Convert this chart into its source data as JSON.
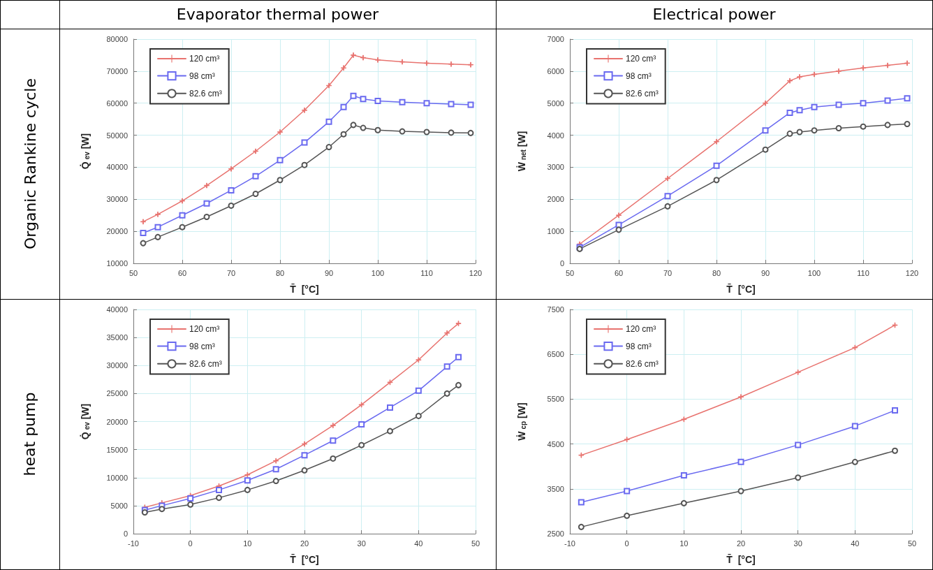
{
  "chart_data": [
    {
      "type": "line",
      "title": "Evaporator thermal power",
      "annotations": [
        "Organic Rankine cycle"
      ],
      "xlabel": "T̄  [°C]",
      "ylabel": "Q̇$_{ev}$ [W]",
      "xlim": [
        50,
        120
      ],
      "xticks": [
        50,
        60,
        70,
        80,
        90,
        100,
        110,
        120
      ],
      "ylim": [
        10000,
        80000
      ],
      "yticks": [
        10000,
        20000,
        30000,
        40000,
        50000,
        60000,
        70000,
        80000
      ],
      "grid": true,
      "legend": "top left",
      "x": [
        52,
        55,
        60,
        65,
        70,
        75,
        80,
        85,
        90,
        93,
        95,
        97,
        100,
        105,
        110,
        115,
        119
      ],
      "series": [
        {
          "name": "120 cm³",
          "color": "#e8736f",
          "marker": "cross",
          "values": [
            23000,
            25300,
            29500,
            34300,
            39500,
            45000,
            51000,
            57800,
            65500,
            71000,
            75000,
            74200,
            73500,
            72900,
            72500,
            72200,
            72000
          ]
        },
        {
          "name": "98 cm³",
          "color": "#6a6af0",
          "marker": "square",
          "values": [
            19500,
            21300,
            25000,
            28700,
            32800,
            37200,
            42200,
            47700,
            54200,
            58800,
            62300,
            61300,
            60700,
            60300,
            60000,
            59700,
            59500
          ]
        },
        {
          "name": "82.6 cm³",
          "color": "#555555",
          "marker": "circle",
          "values": [
            16300,
            18200,
            21300,
            24500,
            28000,
            31700,
            36000,
            40700,
            46300,
            50300,
            53200,
            52300,
            51600,
            51200,
            51000,
            50800,
            50700
          ]
        }
      ]
    },
    {
      "type": "line",
      "title": "Electrical power",
      "xlabel": "T̄  [°C]",
      "ylabel": "Ẇ$_{net}$ [W]",
      "xlim": [
        50,
        120
      ],
      "xticks": [
        50,
        60,
        70,
        80,
        90,
        100,
        110,
        120
      ],
      "ylim": [
        0,
        7000
      ],
      "yticks": [
        0,
        1000,
        2000,
        3000,
        4000,
        5000,
        6000,
        7000
      ],
      "grid": true,
      "legend": "top left",
      "x": [
        52,
        60,
        70,
        80,
        90,
        95,
        97,
        100,
        105,
        110,
        115,
        119
      ],
      "series": [
        {
          "name": "120 cm³",
          "color": "#e8736f",
          "marker": "cross",
          "values": [
            600,
            1500,
            2650,
            3800,
            5000,
            5700,
            5820,
            5900,
            6000,
            6100,
            6180,
            6250
          ]
        },
        {
          "name": "98 cm³",
          "color": "#6a6af0",
          "marker": "square",
          "values": [
            500,
            1200,
            2100,
            3050,
            4150,
            4700,
            4780,
            4880,
            4950,
            5000,
            5080,
            5150
          ]
        },
        {
          "name": "82.6 cm³",
          "color": "#555555",
          "marker": "circle",
          "values": [
            450,
            1050,
            1780,
            2600,
            3550,
            4050,
            4100,
            4150,
            4220,
            4270,
            4320,
            4350
          ]
        }
      ]
    },
    {
      "type": "line",
      "annotations": [
        "heat pump"
      ],
      "xlabel": "T̄  [°C]",
      "ylabel": "Q̇$_{ev}$ [W]",
      "xlim": [
        -10,
        50
      ],
      "xticks": [
        -10,
        0,
        10,
        20,
        30,
        40,
        50
      ],
      "ylim": [
        0,
        40000
      ],
      "yticks": [
        0,
        5000,
        10000,
        15000,
        20000,
        25000,
        30000,
        35000,
        40000
      ],
      "grid": true,
      "legend": "top left",
      "x": [
        -8,
        -5,
        0,
        5,
        10,
        15,
        20,
        25,
        30,
        35,
        40,
        45,
        47
      ],
      "series": [
        {
          "name": "120 cm³",
          "color": "#e8736f",
          "marker": "cross",
          "values": [
            4700,
            5500,
            6800,
            8500,
            10500,
            13000,
            16000,
            19300,
            23000,
            27000,
            31000,
            35800,
            37500
          ]
        },
        {
          "name": "98 cm³",
          "color": "#6a6af0",
          "marker": "square",
          "values": [
            4200,
            5000,
            6300,
            7800,
            9500,
            11500,
            14000,
            16600,
            19500,
            22500,
            25500,
            29800,
            31500
          ]
        },
        {
          "name": "82.6 cm³",
          "color": "#555555",
          "marker": "circle",
          "values": [
            3800,
            4400,
            5200,
            6400,
            7800,
            9400,
            11300,
            13400,
            15800,
            18300,
            21000,
            25000,
            26500
          ]
        }
      ]
    },
    {
      "type": "line",
      "xlabel": "T̄  [°C]",
      "ylabel": "Ẇ$_{cp}$ [W]",
      "xlim": [
        -10,
        50
      ],
      "xticks": [
        -10,
        0,
        10,
        20,
        30,
        40,
        50
      ],
      "ylim": [
        2500,
        7500
      ],
      "yticks": [
        2500,
        3500,
        4500,
        5500,
        6500,
        7500
      ],
      "grid": true,
      "legend": "top left",
      "x": [
        -8,
        0,
        10,
        20,
        30,
        40,
        47
      ],
      "series": [
        {
          "name": "120 cm³",
          "color": "#e8736f",
          "marker": "cross",
          "values": [
            4250,
            4600,
            5050,
            5550,
            6100,
            6650,
            7150
          ]
        },
        {
          "name": "98 cm³",
          "color": "#6a6af0",
          "marker": "square",
          "values": [
            3200,
            3450,
            3800,
            4100,
            4480,
            4900,
            5250
          ]
        },
        {
          "name": "82.6 cm³",
          "color": "#555555",
          "marker": "circle",
          "values": [
            2650,
            2900,
            3180,
            3450,
            3750,
            4100,
            4350
          ]
        }
      ]
    }
  ]
}
